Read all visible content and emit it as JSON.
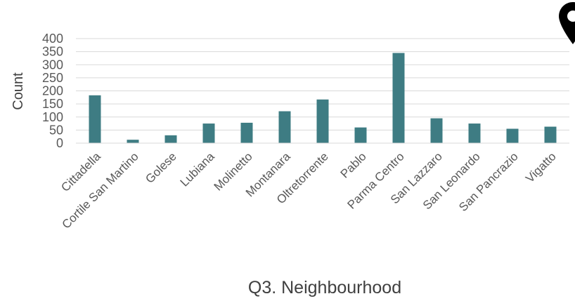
{
  "chart_data": {
    "type": "bar",
    "categories": [
      "Cittadella",
      "Cortile San Martino",
      "Golese",
      "Lubiana",
      "Molinetto",
      "Montanara",
      "Oltretorrente",
      "Pablo",
      "Parma Centro",
      "San Lazzaro",
      "San Leonardo",
      "San Pancrazio",
      "Vigatto"
    ],
    "values": [
      183,
      13,
      30,
      75,
      78,
      122,
      167,
      60,
      345,
      95,
      75,
      55,
      63
    ],
    "xlabel": "Q3. Neighbourhood",
    "ylabel": "Count",
    "ylim": [
      0,
      400
    ],
    "yticks": [
      0,
      50,
      100,
      150,
      200,
      250,
      300,
      350,
      400
    ],
    "grid": true,
    "bar_color": "#3e7c83",
    "icon": "map-pin-icon"
  }
}
